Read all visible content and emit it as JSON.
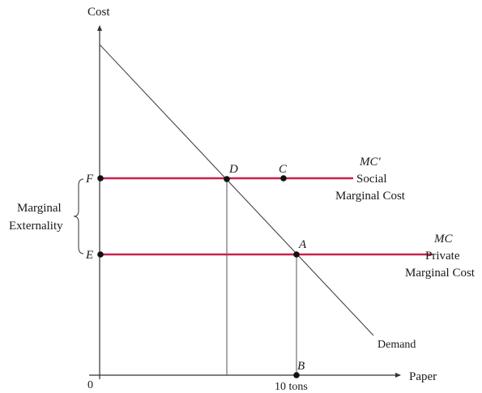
{
  "diagram": {
    "axes": {
      "y_label": "Cost",
      "x_label": "Paper",
      "origin_label": "0",
      "x_tick_label": "10 tons"
    },
    "points": {
      "F": "F",
      "E": "E",
      "D": "D",
      "C": "C",
      "A": "A",
      "B": "B"
    },
    "curves": {
      "demand": "Demand",
      "social_mc_symbol": "MC'",
      "social_mc_line1": "Social",
      "social_mc_line2": "Marginal Cost",
      "private_mc_symbol": "MC",
      "private_mc_line1": "Private",
      "private_mc_line2": "Marginal Cost"
    },
    "bracket": {
      "line1": "Marginal",
      "line2": "Externality"
    },
    "colors": {
      "mc_lines": "#c8214e",
      "axes": "#333333",
      "demand": "#444444",
      "dropline": "#555555"
    }
  }
}
